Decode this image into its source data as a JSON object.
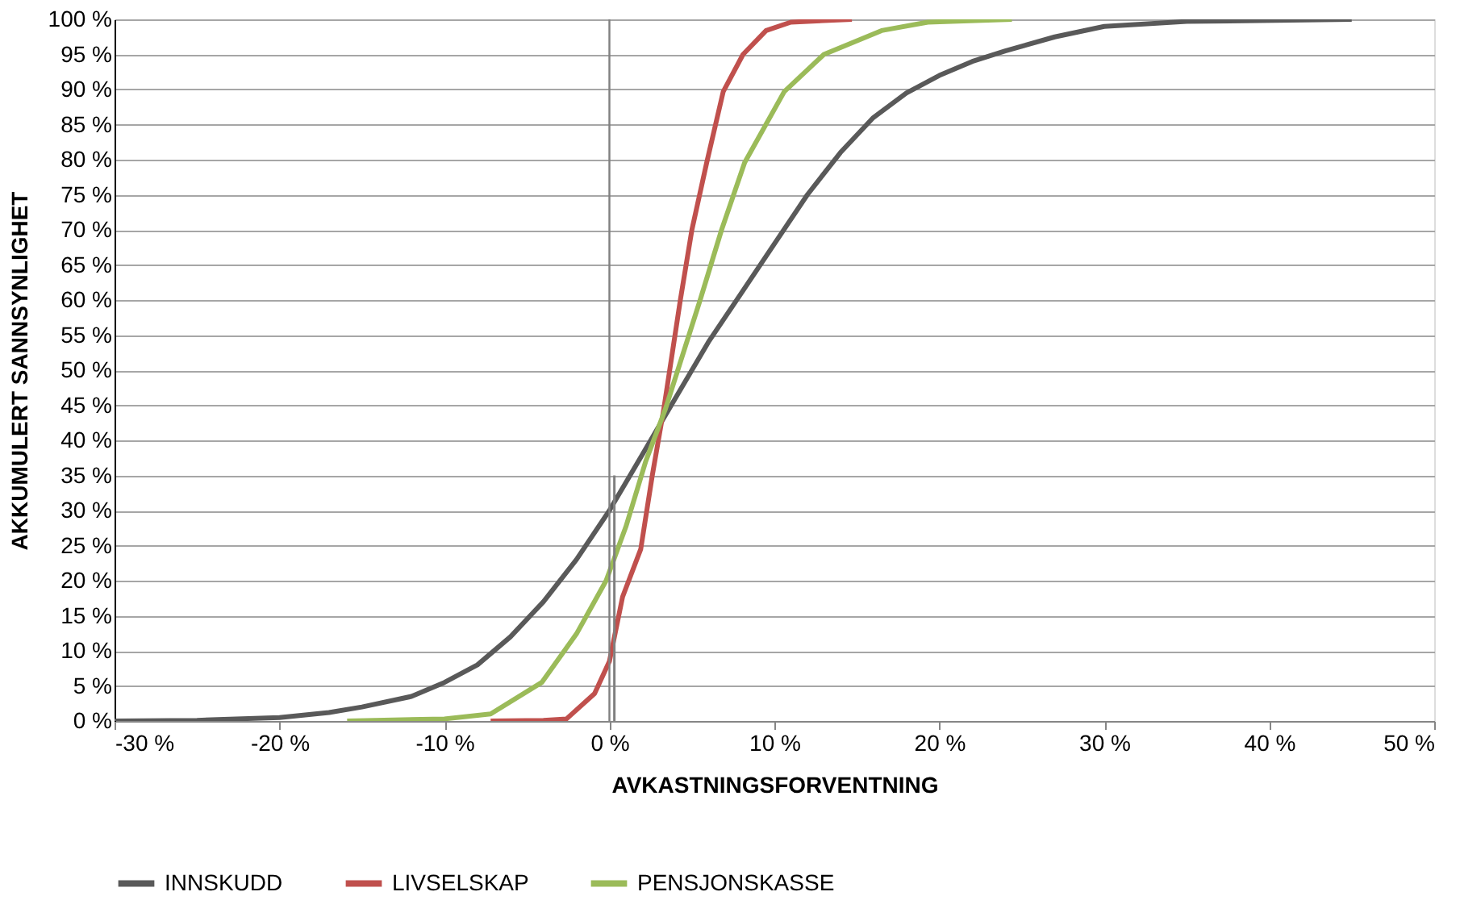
{
  "chart_data": {
    "type": "line",
    "xlabel": "AVKASTNINGSFORVENTNING",
    "ylabel": "AKKUMULERT SANNSYNLIGHET",
    "xlim": [
      -30,
      50
    ],
    "ylim": [
      0,
      100
    ],
    "xticks": [
      {
        "value": -30,
        "label": "-30 %"
      },
      {
        "value": -20,
        "label": "-20 %"
      },
      {
        "value": -10,
        "label": "-10 %"
      },
      {
        "value": 0,
        "label": "0 %"
      },
      {
        "value": 10,
        "label": "10 %"
      },
      {
        "value": 20,
        "label": "20 %"
      },
      {
        "value": 30,
        "label": "30 %"
      },
      {
        "value": 40,
        "label": "40 %"
      },
      {
        "value": 50,
        "label": "50 %"
      }
    ],
    "yticks": [
      {
        "value": 0,
        "label": "0 %"
      },
      {
        "value": 5,
        "label": "5 %"
      },
      {
        "value": 10,
        "label": "10 %"
      },
      {
        "value": 15,
        "label": "15 %"
      },
      {
        "value": 20,
        "label": "20 %"
      },
      {
        "value": 25,
        "label": "25 %"
      },
      {
        "value": 30,
        "label": "30 %"
      },
      {
        "value": 35,
        "label": "35 %"
      },
      {
        "value": 40,
        "label": "40 %"
      },
      {
        "value": 45,
        "label": "45 %"
      },
      {
        "value": 50,
        "label": "50 %"
      },
      {
        "value": 55,
        "label": "55 %"
      },
      {
        "value": 60,
        "label": "60 %"
      },
      {
        "value": 65,
        "label": "65 %"
      },
      {
        "value": 70,
        "label": "70 %"
      },
      {
        "value": 75,
        "label": "75 %"
      },
      {
        "value": 80,
        "label": "80 %"
      },
      {
        "value": 85,
        "label": "85 %"
      },
      {
        "value": 90,
        "label": "90 %"
      },
      {
        "value": 95,
        "label": "95 %"
      },
      {
        "value": 100,
        "label": "100 %"
      }
    ],
    "grid": "y",
    "legend": "bottom",
    "marker": "none",
    "line_style": "solid",
    "ref_lines": [
      {
        "axis": "x",
        "value": 0,
        "color": "#808080"
      }
    ],
    "series": [
      {
        "name": "INNSKUDD",
        "color": "#595959",
        "x": [
          -30,
          -25,
          -20,
          -17,
          -15,
          -12,
          -10,
          -8,
          -6,
          -4,
          -2,
          0,
          1,
          2,
          3,
          4,
          6,
          8,
          10,
          12,
          14,
          16,
          18,
          20,
          22,
          24,
          27,
          30,
          35,
          45
        ],
        "values": [
          0,
          0.1,
          0.5,
          1.2,
          2,
          3.5,
          5.5,
          8,
          12,
          17,
          23,
          30,
          34,
          38,
          42,
          46,
          54,
          61,
          68,
          75,
          81,
          86,
          89.5,
          92,
          94,
          95.5,
          97.5,
          99,
          99.7,
          100
        ]
      },
      {
        "name": "LIVSELSKAP",
        "color": "#c0504d",
        "x": [
          -7.2,
          -4,
          -2.6,
          -0.9,
          0,
          0.8,
          1.9,
          2.6,
          3.3,
          4.3,
          5,
          5.9,
          6.9,
          8.1,
          9.5,
          11,
          14.7
        ],
        "values": [
          0,
          0.1,
          0.3,
          3.9,
          8.5,
          17.7,
          24.5,
          35,
          44.5,
          60,
          70,
          79.6,
          89.7,
          95,
          98.4,
          99.6,
          100
        ]
      },
      {
        "name": "PENSJONSKASSE",
        "color": "#9bbb59",
        "x": [
          -15.9,
          -10,
          -7.2,
          -4.1,
          -2,
          -0.2,
          1,
          2.2,
          3.4,
          5.5,
          6.8,
          8.2,
          10.6,
          13,
          16.5,
          19.3,
          24.4
        ],
        "values": [
          0,
          0.3,
          1,
          5.5,
          12.4,
          20,
          27.7,
          37,
          44.5,
          60,
          70,
          79.6,
          89.7,
          95,
          98.4,
          99.6,
          100
        ]
      },
      {
        "color": "#808080",
        "x": [
          0.3,
          0.3
        ],
        "values": [
          0,
          35
        ]
      }
    ]
  }
}
